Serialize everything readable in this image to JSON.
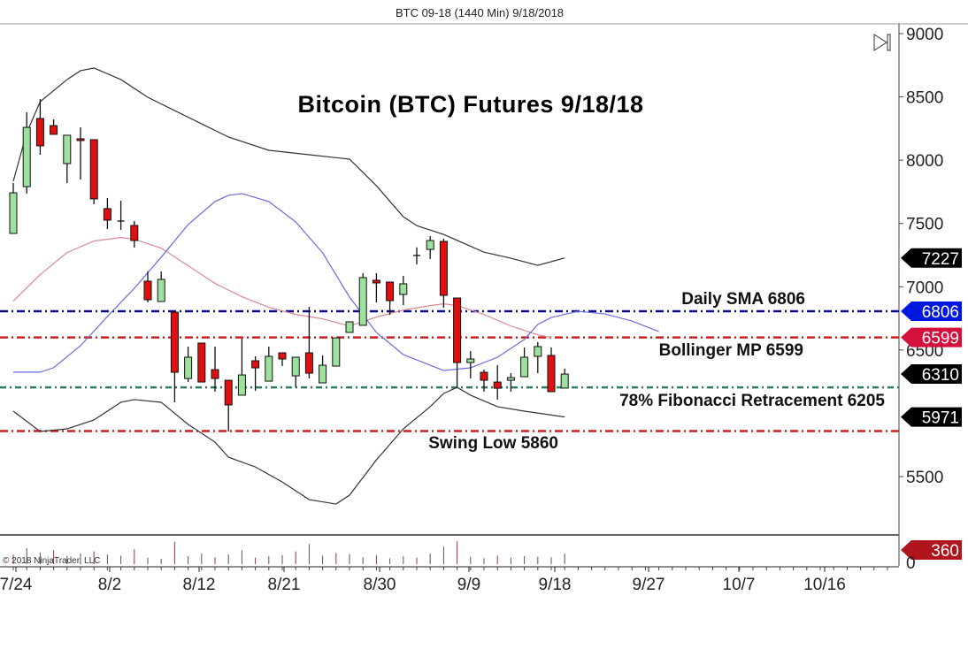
{
  "header": {
    "title": "BTC 09-18 (1440 Min)  9/18/2018"
  },
  "copyright": "© 2018 NinjaTrader, LLC",
  "chart_data": {
    "type": "candlestick",
    "title": "Bitcoin (BTC) Futures 9/18/18",
    "ylim": [
      5250,
      9000
    ],
    "y_ticks": [
      "9000",
      "8500",
      "8000",
      "7500",
      "7000",
      "6500",
      "5500"
    ],
    "x_ticks": [
      "7/24",
      "8/2",
      "8/12",
      "8/21",
      "8/30",
      "9/9",
      "9/18",
      "9/27",
      "10/7",
      "10/16"
    ],
    "candles": [
      {
        "o": 7421,
        "h": 7819,
        "l": 7421,
        "c": 7742
      },
      {
        "o": 7791,
        "h": 8378,
        "l": 7735,
        "c": 8259
      },
      {
        "o": 8329,
        "h": 8483,
        "l": 8043,
        "c": 8113
      },
      {
        "o": 8273,
        "h": 8322,
        "l": 8204,
        "c": 8204
      },
      {
        "o": 7973,
        "h": 8197,
        "l": 7819,
        "c": 8197
      },
      {
        "o": 8169,
        "h": 8259,
        "l": 7847,
        "c": 8155
      },
      {
        "o": 8162,
        "h": 8162,
        "l": 7652,
        "c": 7694
      },
      {
        "o": 7617,
        "h": 7701,
        "l": 7456,
        "c": 7526
      },
      {
        "o": 7519,
        "h": 7680,
        "l": 7449,
        "c": 7519
      },
      {
        "o": 7484,
        "h": 7519,
        "l": 7309,
        "c": 7365
      },
      {
        "o": 7044,
        "h": 7121,
        "l": 6876,
        "c": 6897
      },
      {
        "o": 6883,
        "h": 7121,
        "l": 6883,
        "c": 7058
      },
      {
        "o": 6799,
        "h": 6806,
        "l": 6087,
        "c": 6324
      },
      {
        "o": 6275,
        "h": 6527,
        "l": 6247,
        "c": 6443
      },
      {
        "o": 6555,
        "h": 6555,
        "l": 6247,
        "c": 6247
      },
      {
        "o": 6345,
        "h": 6527,
        "l": 6171,
        "c": 6275
      },
      {
        "o": 6261,
        "h": 6261,
        "l": 5856,
        "c": 6066
      },
      {
        "o": 6143,
        "h": 6590,
        "l": 6143,
        "c": 6303
      },
      {
        "o": 6415,
        "h": 6450,
        "l": 6178,
        "c": 6359
      },
      {
        "o": 6254,
        "h": 6527,
        "l": 6254,
        "c": 6450
      },
      {
        "o": 6478,
        "h": 6478,
        "l": 6373,
        "c": 6429
      },
      {
        "o": 6296,
        "h": 6443,
        "l": 6205,
        "c": 6443
      },
      {
        "o": 6478,
        "h": 6841,
        "l": 6275,
        "c": 6317
      },
      {
        "o": 6240,
        "h": 6457,
        "l": 6240,
        "c": 6380
      },
      {
        "o": 6373,
        "h": 6596,
        "l": 6373,
        "c": 6596
      },
      {
        "o": 6639,
        "h": 6723,
        "l": 6639,
        "c": 6723
      },
      {
        "o": 6695,
        "h": 7107,
        "l": 6695,
        "c": 7072
      },
      {
        "o": 7051,
        "h": 7107,
        "l": 6876,
        "c": 7030
      },
      {
        "o": 7037,
        "h": 7037,
        "l": 6778,
        "c": 6890
      },
      {
        "o": 6939,
        "h": 7086,
        "l": 6855,
        "c": 7023
      },
      {
        "o": 7247,
        "h": 7311,
        "l": 7177,
        "c": 7247
      },
      {
        "o": 7295,
        "h": 7400,
        "l": 7219,
        "c": 7365
      },
      {
        "o": 7358,
        "h": 7379,
        "l": 6834,
        "c": 6932
      },
      {
        "o": 6911,
        "h": 6911,
        "l": 6205,
        "c": 6401
      },
      {
        "o": 6401,
        "h": 6492,
        "l": 6275,
        "c": 6429
      },
      {
        "o": 6324,
        "h": 6345,
        "l": 6171,
        "c": 6261
      },
      {
        "o": 6247,
        "h": 6380,
        "l": 6108,
        "c": 6198
      },
      {
        "o": 6261,
        "h": 6317,
        "l": 6171,
        "c": 6282
      },
      {
        "o": 6289,
        "h": 6520,
        "l": 6289,
        "c": 6443
      },
      {
        "o": 6450,
        "h": 6562,
        "l": 6317,
        "c": 6527
      },
      {
        "o": 6457,
        "h": 6520,
        "l": 6171,
        "c": 6171
      },
      {
        "o": 6199,
        "h": 6352,
        "l": 6199,
        "c": 6310
      }
    ],
    "bollinger_upper": [
      [
        0,
        7833
      ],
      [
        1,
        8217
      ],
      [
        2,
        8462
      ],
      [
        4,
        8637
      ],
      [
        5,
        8707
      ],
      [
        6,
        8728
      ],
      [
        8,
        8637
      ],
      [
        10,
        8497
      ],
      [
        12,
        8392
      ],
      [
        14,
        8287
      ],
      [
        16,
        8183
      ],
      [
        19,
        8078
      ],
      [
        22,
        8043
      ],
      [
        25,
        8008
      ],
      [
        27,
        7798
      ],
      [
        29,
        7553
      ],
      [
        30,
        7483
      ],
      [
        32,
        7413
      ],
      [
        35,
        7273
      ],
      [
        37,
        7225
      ],
      [
        39,
        7169
      ],
      [
        41,
        7227
      ]
    ],
    "bollinger_lower": [
      [
        0,
        6017
      ],
      [
        2,
        5856
      ],
      [
        4,
        5877
      ],
      [
        6,
        5947
      ],
      [
        8,
        6087
      ],
      [
        9,
        6108
      ],
      [
        11,
        6087
      ],
      [
        13,
        5912
      ],
      [
        15,
        5772
      ],
      [
        16,
        5653
      ],
      [
        18,
        5576
      ],
      [
        20,
        5457
      ],
      [
        22,
        5318
      ],
      [
        24,
        5283
      ],
      [
        25,
        5353
      ],
      [
        27,
        5632
      ],
      [
        29,
        5877
      ],
      [
        31,
        6052
      ],
      [
        32,
        6157
      ],
      [
        33,
        6205
      ],
      [
        34,
        6143
      ],
      [
        36,
        6052
      ],
      [
        38,
        6017
      ],
      [
        41,
        5971
      ]
    ],
    "bollinger_middle": [
      [
        0,
        6886
      ],
      [
        2,
        7096
      ],
      [
        4,
        7270
      ],
      [
        6,
        7361
      ],
      [
        8,
        7389
      ],
      [
        9,
        7375
      ],
      [
        11,
        7305
      ],
      [
        13,
        7166
      ],
      [
        15,
        7026
      ],
      [
        17,
        6921
      ],
      [
        19,
        6837
      ],
      [
        21,
        6781
      ],
      [
        23,
        6746
      ],
      [
        25,
        6690
      ],
      [
        27,
        6760
      ],
      [
        29,
        6816
      ],
      [
        31,
        6851
      ],
      [
        32,
        6865
      ],
      [
        33,
        6851
      ],
      [
        35,
        6781
      ],
      [
        37,
        6690
      ],
      [
        39,
        6620
      ],
      [
        40,
        6599
      ]
    ],
    "sma_daily": [
      [
        0,
        6325
      ],
      [
        2,
        6325
      ],
      [
        3,
        6360
      ],
      [
        5,
        6534
      ],
      [
        7,
        6765
      ],
      [
        9,
        6988
      ],
      [
        11,
        7233
      ],
      [
        13,
        7491
      ],
      [
        15,
        7673
      ],
      [
        16,
        7722
      ],
      [
        17,
        7736
      ],
      [
        19,
        7673
      ],
      [
        21,
        7512
      ],
      [
        23,
        7268
      ],
      [
        25,
        6918
      ],
      [
        27,
        6639
      ],
      [
        29,
        6464
      ],
      [
        31,
        6380
      ],
      [
        32,
        6338
      ],
      [
        34,
        6359
      ],
      [
        36,
        6443
      ],
      [
        38,
        6583
      ],
      [
        39,
        6702
      ],
      [
        40,
        6757
      ],
      [
        42,
        6806
      ],
      [
        44,
        6785
      ],
      [
        46,
        6729
      ],
      [
        48,
        6646
      ]
    ],
    "volume": [
      180,
      300,
      220,
      260,
      150,
      200,
      240,
      180,
      160,
      280,
      120,
      100,
      420,
      150,
      200,
      130,
      180,
      260,
      120,
      150,
      170,
      240,
      380,
      160,
      210,
      190,
      130,
      170,
      110,
      150,
      120,
      200,
      330,
      430,
      140,
      110,
      160,
      120,
      150,
      140,
      130,
      200
    ],
    "levels": [
      {
        "label": "Daily SMA 6806",
        "value": 6806,
        "color": "#0a0a8c"
      },
      {
        "label": "Bollinger MP 6599",
        "value": 6599,
        "color": "#cc1f1f"
      },
      {
        "label": "78% Fibonacci Retracement 6205",
        "value": 6205,
        "color": "#2e7d5b"
      },
      {
        "label": "Swing Low 5860",
        "value": 5860,
        "color": "#cc1f1f"
      }
    ],
    "markers": [
      {
        "label": "7227",
        "value": 7227,
        "color": "#000000"
      },
      {
        "label": "6806",
        "value": 6806,
        "color": "#0018e0"
      },
      {
        "label": "6599",
        "value": 6599,
        "color": "#d4103c"
      },
      {
        "label": "6310",
        "value": 6310,
        "color": "#000000"
      },
      {
        "label": "5971",
        "value": 5971,
        "color": "#000000"
      }
    ],
    "volume_marker": {
      "label": "360",
      "color": "#b0141c"
    },
    "volume_zero": "0",
    "colors": {
      "up": "#9ee09e",
      "down": "#e01010",
      "upper_band": "#333333",
      "middle_band": "#d98a95",
      "sma": "#6a6ae0"
    }
  }
}
